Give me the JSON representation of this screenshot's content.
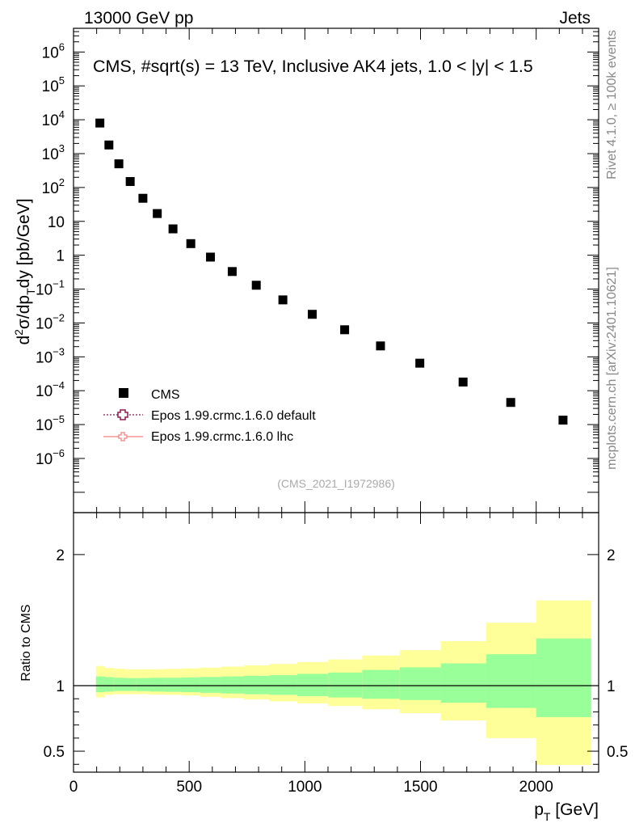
{
  "header": {
    "left": "13000 GeV pp",
    "right": "Jets"
  },
  "side": {
    "rivet": "Rivet 4.1.0, ≥ 100k events",
    "mcplots": "mcplots.cern.ch [arXiv:2401.10621]"
  },
  "colors": {
    "data_marker": "#000000",
    "mc_default": "#8b1a4b",
    "mc_lhc": "#f08080",
    "band_inner": "#99ff99",
    "band_outer": "#ffff99"
  },
  "chart_data": [
    {
      "type": "scatter",
      "title": "CMS, #sqrt(s) = 13 TeV, Inclusive AK4 jets, 1.0 < |y| < 1.5",
      "ylabel_parts": {
        "a": "d",
        "sup2": "2",
        "b": "σ/dp",
        "subT": "T",
        "c": "dy [pb/GeV]"
      },
      "xlim": [
        0,
        2270
      ],
      "ylim_log10": [
        -7.6,
        6.7
      ],
      "yscale": "log",
      "ytick_labels": [
        {
          "exp": 6,
          "base": "10",
          "sup": "6"
        },
        {
          "exp": 5,
          "base": "10",
          "sup": "5"
        },
        {
          "exp": 4,
          "base": "10",
          "sup": "4"
        },
        {
          "exp": 3,
          "base": "10",
          "sup": "3"
        },
        {
          "exp": 2,
          "base": "10",
          "sup": "2"
        },
        {
          "exp": 1,
          "base": "10",
          "sup": ""
        },
        {
          "exp": 0,
          "base": "1",
          "sup": ""
        },
        {
          "exp": -1,
          "base": "10",
          "sup": "−1"
        },
        {
          "exp": -2,
          "base": "10",
          "sup": "−2"
        },
        {
          "exp": -3,
          "base": "10",
          "sup": "−3"
        },
        {
          "exp": -4,
          "base": "10",
          "sup": "−4"
        },
        {
          "exp": -5,
          "base": "10",
          "sup": "−5"
        },
        {
          "exp": -6,
          "base": "10",
          "sup": "−6"
        }
      ],
      "series": [
        {
          "name": "CMS",
          "x": [
            114,
            153,
            196,
            245,
            300,
            362,
            430,
            507,
            592,
            686,
            790,
            905,
            1032,
            1172,
            1327,
            1497,
            1684,
            1890,
            2116
          ],
          "values": [
            8000,
            1800,
            500,
            150,
            48,
            17,
            6,
            2.2,
            0.88,
            0.33,
            0.13,
            0.048,
            0.018,
            0.0063,
            0.0021,
            0.00065,
            0.00018,
            4.5e-05,
            1.35e-05
          ]
        },
        {
          "name": "Epos 1.99.crmc.1.6.0 default",
          "x": [],
          "values": []
        },
        {
          "name": "Epos 1.99.crmc.1.6.0 lhc",
          "x": [],
          "values": []
        }
      ],
      "watermark": "(CMS_2021_I1972986)"
    },
    {
      "type": "area",
      "ylabel": "Ratio to CMS",
      "xlabel_parts": {
        "a": "p",
        "subT": "T",
        "b": " [GeV]"
      },
      "xlim": [
        0,
        2270
      ],
      "ylim": [
        0.34,
        2.32
      ],
      "xticks": [
        0,
        500,
        1000,
        1500,
        2000
      ],
      "xtick_labels": [
        "0",
        "500",
        "1000",
        "1500",
        "2000"
      ],
      "yticks": [
        0.5,
        1,
        2
      ],
      "ytick_labels": [
        "0.5",
        "1",
        "2"
      ],
      "bin_edges": [
        97,
        133,
        174,
        220,
        272,
        330,
        395,
        468,
        548,
        638,
        737,
        846,
        967,
        1101,
        1248,
        1410,
        1588,
        1784,
        2000,
        2238
      ],
      "inner_band": {
        "lower": [
          0.95,
          0.955,
          0.96,
          0.96,
          0.958,
          0.955,
          0.953,
          0.95,
          0.945,
          0.94,
          0.935,
          0.93,
          0.92,
          0.91,
          0.9,
          0.89,
          0.87,
          0.83,
          0.76
        ],
        "upper": [
          1.07,
          1.065,
          1.06,
          1.058,
          1.058,
          1.06,
          1.06,
          1.063,
          1.066,
          1.07,
          1.075,
          1.08,
          1.09,
          1.1,
          1.12,
          1.14,
          1.17,
          1.24,
          1.36
        ]
      },
      "outer_band": {
        "lower": [
          0.91,
          0.93,
          0.935,
          0.935,
          0.935,
          0.932,
          0.93,
          0.925,
          0.915,
          0.905,
          0.895,
          0.88,
          0.865,
          0.845,
          0.82,
          0.79,
          0.735,
          0.6,
          0.395
        ],
        "upper": [
          1.15,
          1.135,
          1.13,
          1.125,
          1.125,
          1.125,
          1.128,
          1.132,
          1.137,
          1.145,
          1.155,
          1.165,
          1.18,
          1.2,
          1.23,
          1.27,
          1.34,
          1.48,
          1.65
        ]
      },
      "reference_line": 1
    }
  ]
}
